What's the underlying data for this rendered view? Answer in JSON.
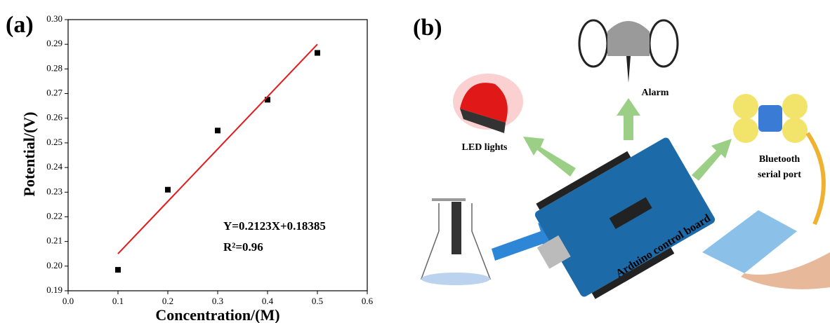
{
  "chart_data": {
    "type": "scatter",
    "panel_label": "(a)",
    "xlabel": "Concentration/(M)",
    "ylabel": "Potential/(V)",
    "annotations": [
      "Y=0.2123X+0.18385",
      "R²=0.96"
    ],
    "xlim": [
      0,
      0.6
    ],
    "xticks": [
      {
        "value": 0,
        "label": "0.0"
      },
      0.1,
      0.2,
      0.3,
      0.4,
      0.5,
      0.6
    ],
    "ylim": [
      0.19,
      0.3
    ],
    "yticks": [
      0.19,
      {
        "value": 0.2,
        "label": "0.20"
      },
      0.21,
      0.22,
      0.23,
      0.24,
      0.25,
      0.26,
      0.27,
      0.28,
      0.29,
      {
        "value": 0.3,
        "label": "0.30"
      }
    ],
    "series": [
      {
        "marker": "square",
        "color": "#000000",
        "x": [
          0.1,
          0.2,
          0.3,
          0.4,
          0.5
        ],
        "values": [
          0.1985,
          0.231,
          0.255,
          0.2675,
          0.2865
        ]
      },
      {
        "marker": "line",
        "color": "#e31a1c",
        "x": [
          0.1,
          0.5
        ],
        "values": [
          0.205,
          0.29
        ]
      }
    ]
  },
  "panel_b": {
    "label": "(b)",
    "led": "LED lights",
    "alarm": "Alarm",
    "bluetooth": [
      "Bluetooth",
      "serial port"
    ],
    "board": "Arduino control board"
  }
}
